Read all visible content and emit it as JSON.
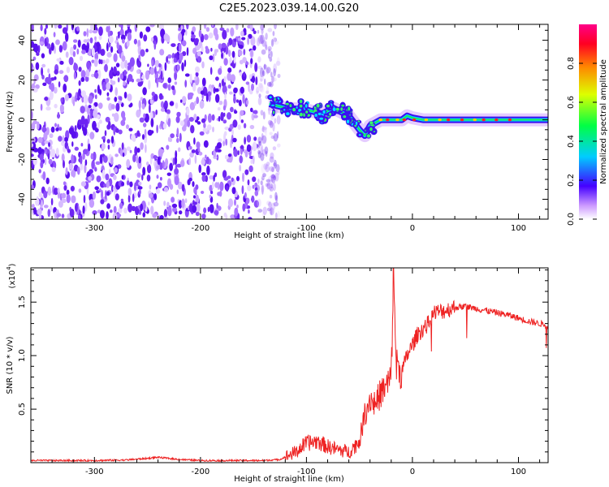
{
  "title": "C2E5.2023.039.14.00.G20",
  "colors": {
    "snr_line": "#ee2222",
    "scatter_base": "#7733ee",
    "axis": "#000000"
  },
  "colorbar": {
    "label": "Normalized spectral amplitude",
    "ticks": [
      "0.0",
      "0.2",
      "0.4",
      "0.6",
      "0.8"
    ],
    "colormap": "rainbow (purple→blue→cyan→green→yellow→red)"
  },
  "chart_data": [
    {
      "type": "heatmap",
      "title": "C2E5.2023.039.14.00.G20",
      "xlabel": "Height of straight line (km)",
      "ylabel": "Frequency (Hz)",
      "xlim": [
        -360,
        128
      ],
      "ylim": [
        -50,
        48
      ],
      "xticks": [
        "-300",
        "-200",
        "-100",
        "0",
        "100"
      ],
      "yticks": [
        "40",
        "20",
        "0",
        "-20",
        "-40"
      ],
      "noise_region_x": [
        -360,
        -135
      ],
      "signal_trace": {
        "x": [
          -135,
          -120,
          -100,
          -85,
          -75,
          -60,
          -50,
          -45,
          -40,
          -30,
          -20,
          -10,
          -5,
          0,
          10,
          30,
          50,
          75,
          100,
          128
        ],
        "y": [
          8,
          6,
          5,
          3,
          6,
          2,
          -5,
          -8,
          -3,
          0,
          0,
          0,
          2,
          1,
          0,
          0,
          0,
          0,
          0,
          0
        ],
        "peak_amplitude_segment_x": [
          -30,
          100
        ]
      }
    },
    {
      "type": "line",
      "xlabel": "Height of straight line (km)",
      "ylabel": "SNR (10 * v/v)",
      "y_scale_note": "(x10",
      "y_scale_exp": "4",
      "y_scale_close": ")",
      "xlim": [
        -360,
        128
      ],
      "ylim": [
        0,
        1.82
      ],
      "xticks": [
        "-300",
        "-200",
        "-100",
        "0",
        "100"
      ],
      "yticks": [
        "1.5",
        "1.0",
        "0.5"
      ],
      "series": [
        {
          "x": [
            -360,
            -330,
            -300,
            -270,
            -250,
            -240,
            -220,
            -200,
            -180,
            -160,
            -140,
            -125,
            -110,
            -100,
            -90,
            -80,
            -70,
            -60,
            -50,
            -45,
            -40,
            -35,
            -30,
            -25,
            -20,
            -18,
            -15,
            -10,
            -5,
            0,
            5,
            10,
            15,
            20,
            30,
            40,
            50,
            60,
            70,
            80,
            90,
            100,
            110,
            120,
            128
          ],
          "y": [
            0.02,
            0.02,
            0.02,
            0.025,
            0.04,
            0.05,
            0.03,
            0.02,
            0.02,
            0.02,
            0.02,
            0.03,
            0.1,
            0.18,
            0.2,
            0.15,
            0.12,
            0.1,
            0.2,
            0.45,
            0.6,
            0.55,
            0.65,
            0.7,
            0.8,
            1.78,
            0.9,
            0.85,
            1.0,
            1.1,
            1.2,
            1.25,
            1.3,
            1.4,
            1.42,
            1.45,
            1.46,
            1.44,
            1.42,
            1.4,
            1.38,
            1.35,
            1.32,
            1.3,
            1.28
          ]
        }
      ]
    }
  ]
}
